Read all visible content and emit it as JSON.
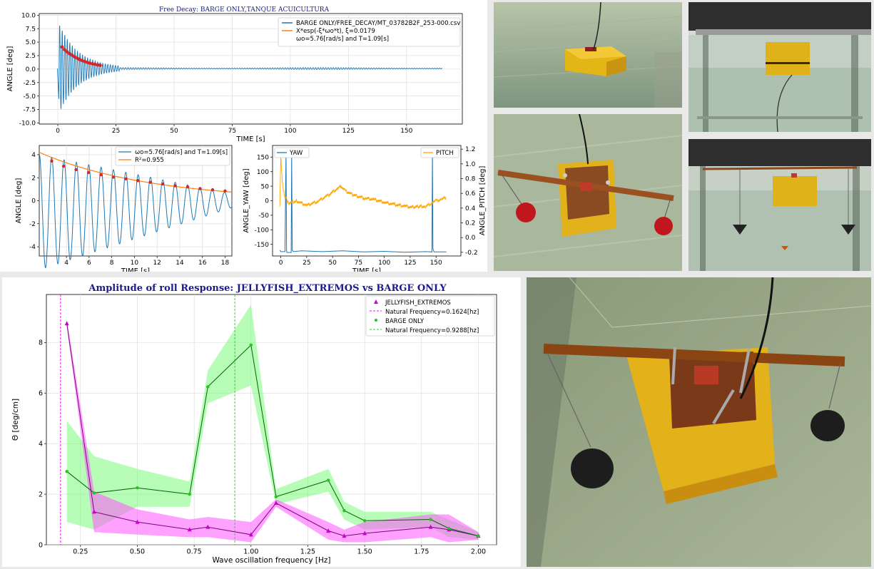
{
  "figure": {
    "title": "Free Decay: BARGE ONLY,TANQUE ACUICULTURA"
  },
  "chart_data": [
    {
      "id": "free-decay-main",
      "type": "line",
      "title": "",
      "xlabel": "TIME [s]",
      "ylabel": "ANGLE [deg]",
      "xlim": [
        -8,
        174
      ],
      "ylim": [
        -10.2,
        10.3
      ],
      "xticks": [
        0,
        25,
        50,
        75,
        100,
        125,
        150
      ],
      "yticks": [
        -10.0,
        -7.5,
        -5.0,
        -2.5,
        0.0,
        2.5,
        5.0,
        7.5,
        10.0
      ],
      "ytick_labels": [
        "-10.0",
        "-7.5",
        "-5.0",
        "-2.5",
        "0.0",
        "2.5",
        "5.0",
        "7.5",
        "10.0"
      ],
      "grid": true,
      "legend_position": "top-right",
      "legend": [
        {
          "label": "BARGE ONLY/FREE_DECAY/MT_03782B2F_253-000.csv",
          "color": "#1f77b4",
          "kind": "line"
        },
        {
          "label": "X*esp(-ξ*ωo*t), ξ=0.0179",
          "color": "#ff7f0e",
          "kind": "line"
        },
        {
          "label": "ωo=5.76[rad/s] and T=1.09[s]",
          "color": "",
          "kind": "text"
        }
      ],
      "series": [
        {
          "name": "BARGE ONLY/FREE_DECAY/MT_03782B2F_253-000.csv",
          "kind": "damped-signal",
          "start": 0.4,
          "amplitude": 8.3,
          "offset": 0.1,
          "period": 1.09,
          "zeta": 0.0179,
          "x_end": 165,
          "color": "#1f77b4"
        },
        {
          "name": "X*esp(-ξ*ωo*t), ξ=0.0179",
          "kind": "envelope",
          "x": [
            1.8,
            18.5
          ],
          "amplitude_at_start": 4.1,
          "color": "#ff7f0e"
        },
        {
          "name": "peaks",
          "kind": "points",
          "x": [
            1.8,
            2.9,
            4.0,
            5.1,
            6.2,
            7.3,
            8.4,
            9.4,
            10.5,
            11.6,
            12.7,
            13.8,
            14.9,
            16.0,
            17.1,
            18.2
          ],
          "y": [
            4.1,
            3.6,
            3.2,
            2.85,
            2.55,
            2.25,
            2.0,
            1.78,
            1.58,
            1.4,
            1.25,
            1.1,
            0.98,
            0.88,
            0.78,
            0.7
          ],
          "color": "#d62728"
        }
      ]
    },
    {
      "id": "free-decay-fit",
      "type": "line",
      "title": "",
      "xlabel": "TIME [s]",
      "ylabel": "ANGLE [deg]",
      "xlim": [
        1.6,
        18.6
      ],
      "ylim": [
        -4.8,
        4.8
      ],
      "xticks": [
        4,
        6,
        8,
        10,
        12,
        14,
        16,
        18
      ],
      "yticks": [
        -4,
        -2,
        0,
        2,
        4
      ],
      "grid": true,
      "legend_position": "top-right",
      "legend": [
        {
          "label": "ωo=5.76[rad/s] and T=1.09[s]",
          "color": "#1f77b4"
        },
        {
          "label": "R²=0.955",
          "color": "#ff7f0e"
        }
      ],
      "series": [
        {
          "name": "ωo=5.76[rad/s] and T=1.09[s]",
          "kind": "oscillation",
          "x_start": 1.6,
          "x_end": 18.6,
          "amplitude_at_start": 4.4,
          "decay_to": 0.6,
          "period": 1.09,
          "offset": -1.5
        },
        {
          "name": "R²=0.955",
          "kind": "envelope",
          "x": [
            1.6,
            18.6
          ],
          "y": [
            4.2,
            0.75
          ]
        },
        {
          "name": "peaks",
          "kind": "points",
          "x": [
            2.7,
            3.75,
            4.85,
            5.95,
            7.05,
            8.15,
            9.25,
            10.3,
            11.4,
            12.5,
            13.6,
            14.7,
            15.8,
            16.9,
            18.0
          ],
          "y": [
            3.45,
            3.0,
            2.7,
            2.45,
            2.25,
            2.05,
            1.9,
            1.75,
            1.6,
            1.45,
            1.3,
            1.2,
            1.05,
            0.95,
            0.85
          ]
        }
      ]
    },
    {
      "id": "yaw-pitch",
      "type": "line",
      "title": "",
      "xlabel": "TIME [s]",
      "ylabel": "ANGLE_YAW [deg]",
      "y2label": "ANGLE_PITCH [deg]",
      "xlim": [
        -8,
        174
      ],
      "ylim": [
        -190,
        190
      ],
      "y2lim": [
        -0.25,
        1.25
      ],
      "xticks": [
        0,
        25,
        50,
        75,
        100,
        125,
        150
      ],
      "yticks": [
        -150,
        -100,
        -50,
        0,
        50,
        100,
        150
      ],
      "y2ticks": [
        -0.2,
        0.0,
        0.2,
        0.4,
        0.6,
        0.8,
        1.0,
        1.2
      ],
      "y2tick_labels": [
        "-0.2",
        "0.0",
        "0.2",
        "0.4",
        "0.6",
        "0.8",
        "1.0",
        "1.2"
      ],
      "grid": false,
      "legend": [
        {
          "label": "YAW",
          "color": "#1f77b4",
          "position": "top-left"
        },
        {
          "label": "PITCH",
          "color": "#ffa500",
          "position": "top-right"
        }
      ],
      "series": [
        {
          "name": "YAW",
          "color": "#1f77b4",
          "x": [
            -1,
            0,
            4,
            5,
            5.5,
            6,
            7,
            10,
            10.5,
            11,
            12,
            20,
            40,
            60,
            80,
            100,
            120,
            140,
            146,
            146.5,
            147,
            148,
            160
          ],
          "y": [
            -170,
            -175,
            -175,
            170,
            -170,
            -178,
            -178,
            -178,
            170,
            -170,
            -175,
            -172,
            -175,
            -172,
            -176,
            -174,
            -177,
            -175,
            -176,
            175,
            -165,
            -176,
            -176
          ]
        },
        {
          "name": "PITCH",
          "color": "#ffa500",
          "x": [
            -1,
            0,
            1,
            2,
            4,
            8,
            15,
            25,
            35,
            45,
            55,
            58,
            62,
            70,
            80,
            90,
            100,
            110,
            120,
            128,
            135,
            140,
            145,
            150,
            155,
            160
          ],
          "y": [
            0.45,
            1.1,
            0.85,
            0.7,
            0.55,
            0.47,
            0.5,
            0.44,
            0.49,
            0.57,
            0.67,
            0.7,
            0.64,
            0.58,
            0.54,
            0.52,
            0.48,
            0.45,
            0.43,
            0.41,
            0.43,
            0.42,
            0.47,
            0.5,
            0.52,
            0.55
          ]
        }
      ]
    },
    {
      "id": "roll-amplitude",
      "type": "line",
      "title": "Amplitude of roll Response: JELLYFISH_EXTREMOS vs BARGE ONLY",
      "xlabel": "Wave oscillation frequency [Hz]",
      "ylabel": "Θ [deg/cm]",
      "xlim": [
        0.1,
        2.08
      ],
      "ylim": [
        0,
        9.9
      ],
      "xticks": [
        0.25,
        0.5,
        0.75,
        1.0,
        1.25,
        1.5,
        1.75,
        2.0
      ],
      "xtick_labels": [
        "0.25",
        "0.50",
        "0.75",
        "1.00",
        "1.25",
        "1.50",
        "1.75",
        "2.00"
      ],
      "yticks": [
        0,
        2,
        4,
        6,
        8
      ],
      "grid": true,
      "legend_position": "top-right",
      "vlines": [
        {
          "x": 0.1624,
          "label": "Natural Frequency=0.1624[hz]",
          "color": "#ff00ff"
        },
        {
          "x": 0.9288,
          "label": "Natural Frequency=0.9288[hz]",
          "color": "#32cd32"
        }
      ],
      "series": [
        {
          "name": "JELLYFISH_EXTREMOS",
          "color": "#800080",
          "band": "#ff55ff",
          "marker": "triangle",
          "x": [
            0.19,
            0.31,
            0.5,
            0.73,
            0.81,
            1.0,
            1.11,
            1.34,
            1.41,
            1.5,
            1.79,
            1.87,
            2.0
          ],
          "y": [
            8.75,
            1.3,
            0.9,
            0.6,
            0.7,
            0.4,
            1.65,
            0.55,
            0.35,
            0.45,
            0.7,
            0.6,
            0.35
          ],
          "band_upper": [
            8.9,
            2.1,
            1.4,
            1.0,
            1.1,
            0.9,
            1.8,
            0.9,
            0.6,
            0.9,
            1.2,
            1.2,
            0.5
          ],
          "band_lower": [
            8.6,
            0.5,
            0.4,
            0.3,
            0.3,
            0.1,
            1.5,
            0.2,
            0.1,
            0.1,
            0.3,
            0.1,
            0.2
          ]
        },
        {
          "name": "BARGE ONLY",
          "color": "#006400",
          "band": "#7cfc7c",
          "marker": "star",
          "x": [
            0.19,
            0.31,
            0.5,
            0.73,
            0.81,
            1.0,
            1.11,
            1.34,
            1.41,
            1.5,
            1.79,
            1.87,
            2.0
          ],
          "y": [
            2.9,
            2.05,
            2.25,
            2.0,
            6.25,
            7.9,
            1.9,
            2.55,
            1.35,
            0.95,
            1.0,
            0.65,
            0.35
          ],
          "band_upper": [
            4.9,
            3.5,
            3.0,
            2.5,
            6.9,
            9.5,
            2.2,
            3.0,
            1.7,
            1.3,
            1.3,
            1.0,
            0.5
          ],
          "band_lower": [
            0.9,
            0.6,
            1.5,
            1.5,
            5.6,
            6.3,
            1.6,
            2.1,
            1.0,
            0.6,
            0.7,
            0.3,
            0.2
          ]
        }
      ]
    }
  ],
  "photos": [
    {
      "id": "photo-barge-top-left",
      "description_icon": "barge-photo-icon"
    },
    {
      "id": "photo-tank-side-top",
      "description_icon": "tank-photo-icon"
    },
    {
      "id": "photo-jellyfish-top",
      "description_icon": "jellyfish-photo-icon"
    },
    {
      "id": "photo-tank-side-bottom",
      "description_icon": "tank-photo-icon"
    },
    {
      "id": "photo-jellyfish-large",
      "description_icon": "jellyfish-photo-icon"
    }
  ]
}
